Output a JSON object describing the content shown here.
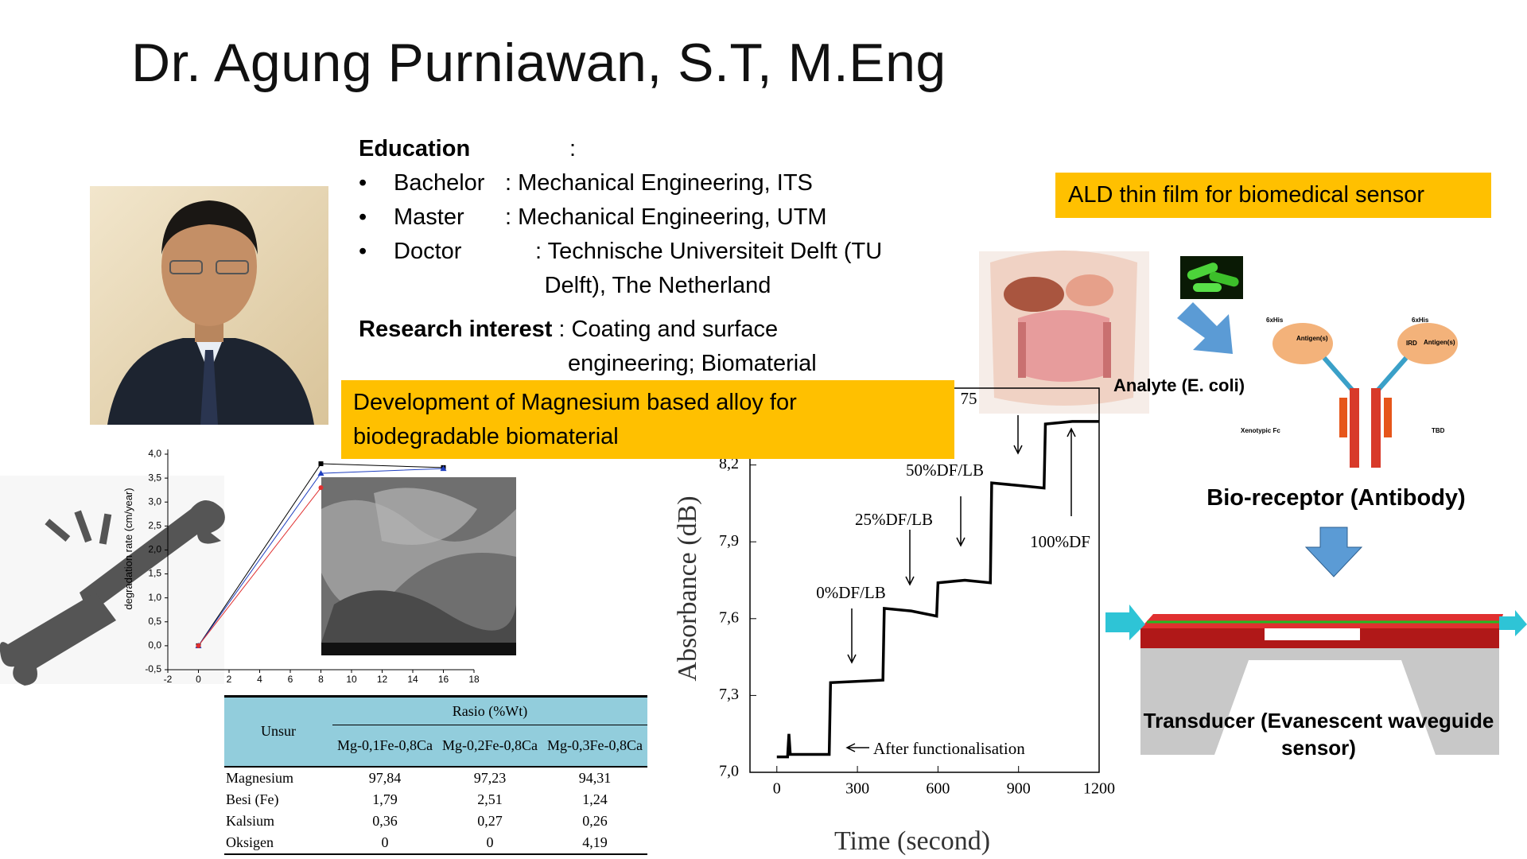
{
  "title": "Dr. Agung Purniawan, S.T, M.Eng",
  "education": {
    "heading": "Education",
    "separator": ":",
    "items": [
      {
        "degree": "Bachelor",
        "detail": ": Mechanical Engineering, ITS"
      },
      {
        "degree": "Master",
        "detail": ": Mechanical Engineering, UTM"
      },
      {
        "degree": "Doctor",
        "detail": ": Technische Universiteit Delft (TU Delft), The Netherland"
      }
    ]
  },
  "research": {
    "label": "Research interest",
    "detail": ": Coating and surface engineering; Biomaterial"
  },
  "callouts": {
    "magnesium": "Development of Magnesium based alloy for biodegradable biomaterial",
    "ald": "ALD thin film for biomedical sensor"
  },
  "degradation_chart": {
    "type": "line",
    "y_label": "degradation rate (cm/year)",
    "xlim": [
      -2,
      18
    ],
    "ylim": [
      -0.5,
      4.0
    ],
    "xticks": [
      -2,
      0,
      2,
      4,
      6,
      8,
      10,
      12,
      14,
      16,
      18
    ],
    "yticks": [
      {
        "value": 4.0,
        "label": "4,0"
      },
      {
        "value": 3.5,
        "label": "3,5"
      },
      {
        "value": 3.0,
        "label": "3,0"
      },
      {
        "value": 2.5,
        "label": "2,5"
      },
      {
        "value": 2.0,
        "label": "2,0"
      },
      {
        "value": 1.5,
        "label": "1,5"
      },
      {
        "value": 1.0,
        "label": "1,0"
      },
      {
        "value": 0.5,
        "label": "0,5"
      },
      {
        "value": 0.0,
        "label": "0,0"
      },
      {
        "value": -0.5,
        "label": "-0,5"
      }
    ],
    "series": [
      {
        "color": "#000000",
        "marker": "square",
        "x": [
          0,
          8,
          16
        ],
        "values": [
          0,
          3.8,
          3.72
        ]
      },
      {
        "color": "#1f3fbf",
        "marker": "triangle",
        "x": [
          0,
          8,
          16
        ],
        "values": [
          0,
          3.6,
          3.7
        ]
      },
      {
        "color": "#e03030",
        "marker": "circle",
        "x": [
          0,
          8
        ],
        "values": [
          0,
          3.3
        ]
      }
    ]
  },
  "composition_table": {
    "header": {
      "element": "Unsur",
      "group": "Rasio (%Wt)",
      "columns": [
        "Mg-0,1Fe-0,8Ca",
        "Mg-0,2Fe-0,8Ca",
        "Mg-0,3Fe-0,8Ca"
      ]
    },
    "rows": [
      [
        "Magnesium",
        "97,84",
        "97,23",
        "94,31"
      ],
      [
        "Besi (Fe)",
        "1,79",
        "2,51",
        "1,24"
      ],
      [
        "Kalsium",
        "0,36",
        "0,27",
        "0,26"
      ],
      [
        "Oksigen",
        "0",
        "0",
        "4,19"
      ]
    ]
  },
  "absorbance_chart": {
    "type": "line",
    "x_label": "Time (second)",
    "y_label": "Absorbance (dB)",
    "xlim": [
      -100,
      1200
    ],
    "ylim": [
      7.0,
      8.5
    ],
    "xticks": [
      0,
      300,
      600,
      900,
      1200
    ],
    "yticks": [
      {
        "value": 7.0,
        "label": "7,0"
      },
      {
        "value": 7.3,
        "label": "7,3"
      },
      {
        "value": 7.6,
        "label": "7,6"
      },
      {
        "value": 7.9,
        "label": "7,9"
      },
      {
        "value": 8.2,
        "label": "8,2"
      }
    ],
    "series": [
      {
        "color": "#000000",
        "x": [
          0,
          40,
          45,
          50,
          195,
          200,
          395,
          400,
          500,
          595,
          600,
          700,
          795,
          800,
          900,
          995,
          1000,
          1100,
          1200
        ],
        "values": [
          7.06,
          7.06,
          7.15,
          7.07,
          7.07,
          7.35,
          7.36,
          7.64,
          7.63,
          7.61,
          7.74,
          7.75,
          7.74,
          8.13,
          8.12,
          8.11,
          8.36,
          8.37,
          8.37
        ]
      }
    ],
    "annotations": [
      "0%DF/LB",
      "25%DF/LB",
      "50%DF/LB",
      "75",
      "100%DF",
      "After functionalisation"
    ]
  },
  "sensor_diagram": {
    "analyte": "Analyte (E. coli)",
    "bioreceptor": "Bio-receptor (Antibody)",
    "transducer": "Transducer (Evanescent waveguide sensor)",
    "antibody_labels": [
      "6xHis",
      "Antigen(s)",
      "6xHis",
      "Antigen(s)",
      "IRD",
      "Xenotypic Fc",
      "TBD"
    ]
  }
}
